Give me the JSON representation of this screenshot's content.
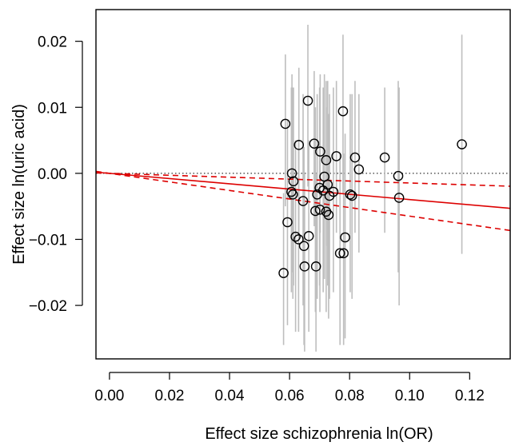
{
  "chart_data": {
    "type": "scatter",
    "title": "",
    "xlabel": "Effect size schizophrenia ln(OR)",
    "ylabel": "Effect size ln(uric acid)",
    "xlim": [
      -0.0045,
      0.1335
    ],
    "ylim": [
      -0.0281,
      0.0248
    ],
    "x_ticks": [
      0.0,
      0.02,
      0.04,
      0.06,
      0.08,
      0.1,
      0.12
    ],
    "x_tick_labels": [
      "0.00",
      "0.02",
      "0.04",
      "0.06",
      "0.08",
      "0.10",
      "0.12"
    ],
    "y_ticks": [
      0.02,
      0.01,
      0.0,
      -0.01,
      -0.02
    ],
    "y_tick_labels": [
      "0.02",
      "0.01",
      "0.00",
      "−0.01",
      "−0.02"
    ],
    "grid": false,
    "colors": {
      "points": "#000000",
      "error_bars": "#bebebe",
      "fit": "#dd0000",
      "ci": "#dd0000",
      "reference": "#000000"
    },
    "reference_line": {
      "y": 0,
      "style": "dotted"
    },
    "fit_line": {
      "intercept": 0,
      "slope": -0.0397,
      "style": "solid"
    },
    "ci_lines": [
      {
        "intercept": 0,
        "slope": -0.0146,
        "style": "dashed"
      },
      {
        "intercept": 0,
        "slope": -0.0648,
        "style": "dashed"
      }
    ],
    "points": [
      {
        "x": 0.0586,
        "y": 0.0075,
        "lo": -0.005,
        "hi": 0.018
      },
      {
        "x": 0.0661,
        "y": 0.011,
        "lo": -0.002,
        "hi": 0.0225
      },
      {
        "x": 0.0778,
        "y": 0.0094,
        "lo": -0.003,
        "hi": 0.021
      },
      {
        "x": 0.0631,
        "y": 0.0043,
        "lo": -0.01,
        "hi": 0.016
      },
      {
        "x": 0.0682,
        "y": 0.0045,
        "lo": -0.008,
        "hi": 0.0155
      },
      {
        "x": 0.0702,
        "y": 0.0033,
        "lo": -0.009,
        "hi": 0.015
      },
      {
        "x": 0.0722,
        "y": 0.002,
        "lo": -0.011,
        "hi": 0.014
      },
      {
        "x": 0.0756,
        "y": 0.0026,
        "lo": -0.009,
        "hi": 0.014
      },
      {
        "x": 0.0818,
        "y": 0.0024,
        "lo": -0.009,
        "hi": 0.014
      },
      {
        "x": 0.0831,
        "y": 0.0006,
        "lo": -0.012,
        "hi": 0.012
      },
      {
        "x": 0.0917,
        "y": 0.0024,
        "lo": -0.009,
        "hi": 0.013
      },
      {
        "x": 0.0962,
        "y": -0.0004,
        "lo": -0.015,
        "hi": 0.014
      },
      {
        "x": 0.1174,
        "y": 0.0044,
        "lo": -0.0122,
        "hi": 0.021
      },
      {
        "x": 0.0608,
        "y": 0.0,
        "lo": -0.015,
        "hi": 0.015
      },
      {
        "x": 0.0613,
        "y": -0.0012,
        "lo": -0.017,
        "hi": 0.013
      },
      {
        "x": 0.0606,
        "y": -0.0028,
        "lo": -0.018,
        "hi": 0.013
      },
      {
        "x": 0.0611,
        "y": -0.0032,
        "lo": -0.019,
        "hi": 0.013
      },
      {
        "x": 0.0645,
        "y": -0.0042,
        "lo": -0.02,
        "hi": 0.012
      },
      {
        "x": 0.0692,
        "y": -0.0032,
        "lo": -0.019,
        "hi": 0.012
      },
      {
        "x": 0.07,
        "y": -0.0022,
        "lo": -0.017,
        "hi": 0.013
      },
      {
        "x": 0.0716,
        "y": -0.0005,
        "lo": -0.016,
        "hi": 0.015
      },
      {
        "x": 0.0712,
        "y": -0.0026,
        "lo": -0.018,
        "hi": 0.013
      },
      {
        "x": 0.0727,
        "y": -0.0017,
        "lo": -0.017,
        "hi": 0.014
      },
      {
        "x": 0.0733,
        "y": -0.0034,
        "lo": -0.019,
        "hi": 0.012
      },
      {
        "x": 0.0746,
        "y": -0.0028,
        "lo": -0.018,
        "hi": 0.013
      },
      {
        "x": 0.0802,
        "y": -0.0032,
        "lo": -0.018,
        "hi": 0.012
      },
      {
        "x": 0.0808,
        "y": -0.0034,
        "lo": -0.019,
        "hi": 0.012
      },
      {
        "x": 0.0965,
        "y": -0.0037,
        "lo": -0.02,
        "hi": 0.013
      },
      {
        "x": 0.0593,
        "y": -0.0074,
        "lo": -0.023,
        "hi": 0.008
      },
      {
        "x": 0.0686,
        "y": -0.0057,
        "lo": -0.021,
        "hi": 0.01
      },
      {
        "x": 0.0701,
        "y": -0.0055,
        "lo": -0.021,
        "hi": 0.01
      },
      {
        "x": 0.0722,
        "y": -0.0058,
        "lo": -0.021,
        "hi": 0.01
      },
      {
        "x": 0.073,
        "y": -0.0063,
        "lo": -0.022,
        "hi": 0.009
      },
      {
        "x": 0.062,
        "y": -0.0096,
        "lo": -0.024,
        "hi": 0.005
      },
      {
        "x": 0.063,
        "y": -0.01,
        "lo": -0.024,
        "hi": 0.005
      },
      {
        "x": 0.0648,
        "y": -0.011,
        "lo": -0.026,
        "hi": 0.004
      },
      {
        "x": 0.0664,
        "y": -0.0095,
        "lo": -0.024,
        "hi": 0.005
      },
      {
        "x": 0.0785,
        "y": -0.0097,
        "lo": -0.025,
        "hi": 0.006
      },
      {
        "x": 0.0768,
        "y": -0.0121,
        "lo": -0.026,
        "hi": 0.003
      },
      {
        "x": 0.078,
        "y": -0.0121,
        "lo": -0.026,
        "hi": 0.003
      },
      {
        "x": 0.065,
        "y": -0.0141,
        "lo": -0.027,
        "hi": 0.0
      },
      {
        "x": 0.0688,
        "y": -0.0141,
        "lo": -0.027,
        "hi": 0.0
      },
      {
        "x": 0.058,
        "y": -0.0151,
        "lo": -0.026,
        "hi": -0.003
      }
    ]
  }
}
